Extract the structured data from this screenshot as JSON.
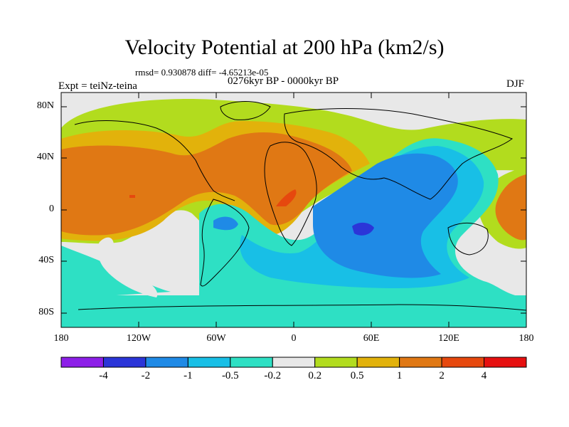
{
  "title": "Velocity Potential at 200 hPa (km2/s)",
  "stats_line": "rmsd= 0.930878 diff= -4.65213e-05",
  "period_line": "0276kyr BP - 0000kyr BP",
  "experiment_label": "Expt = teiNz-teina",
  "season_label": "DJF",
  "lat_axis": [
    "80N",
    "40N",
    "0",
    "40S",
    "80S"
  ],
  "lon_axis": [
    "180",
    "120W",
    "60W",
    "0",
    "60E",
    "120E",
    "180"
  ],
  "colorbar": {
    "labels": [
      "-4",
      "-2",
      "-1",
      "-0.5",
      "-0.2",
      "0.2",
      "0.5",
      "1",
      "2",
      "4"
    ],
    "colors": [
      "#8d1fe8",
      "#2b35d8",
      "#1f8ae6",
      "#18bfe6",
      "#2ee0c4",
      "#e8e8e8",
      "#b2dc1e",
      "#e2b20b",
      "#e07814",
      "#e6480e",
      "#e61010"
    ]
  },
  "palette": {
    "neutral": "#e8e8e8",
    "light_green": "#b2dc1e",
    "gold": "#e2b20b",
    "orange": "#e07814",
    "red_orange": "#e6480e",
    "teal": "#2ee0c4",
    "cyan": "#18bfe6",
    "blue": "#1f8ae6",
    "dark_blue": "#2b35d8"
  }
}
